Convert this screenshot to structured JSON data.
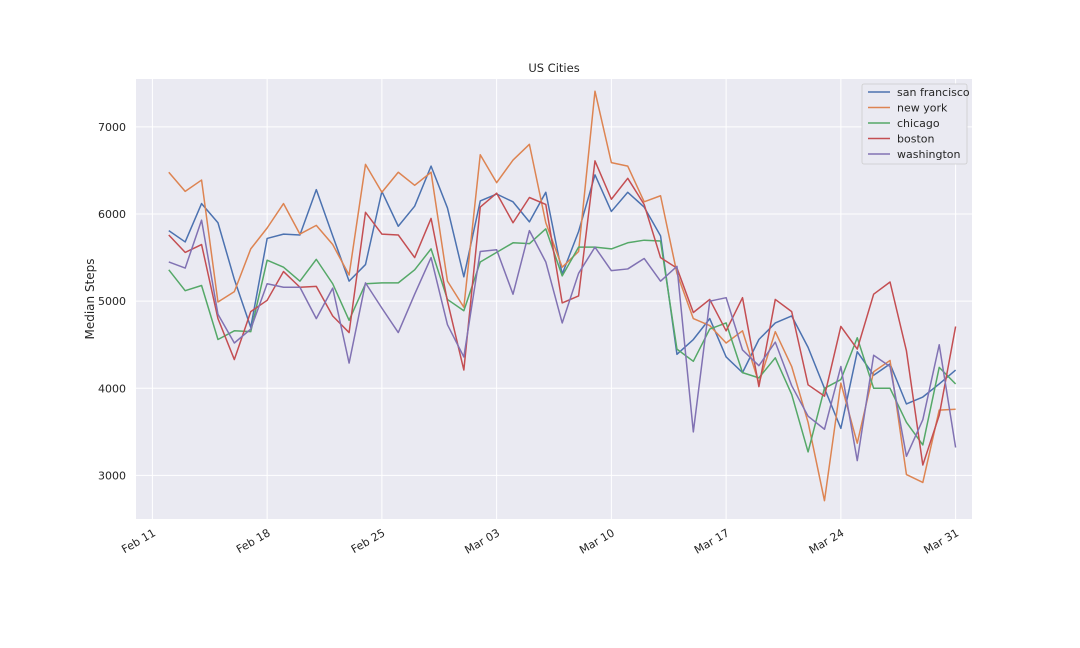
{
  "chart_data": {
    "type": "line",
    "title": "US Cities",
    "xlabel": "",
    "ylabel": "Median Steps",
    "x_start": "2020-02-12",
    "x_end": "2020-03-31",
    "xlim": [
      "2020-02-10",
      "2020-04-01"
    ],
    "ylim": [
      2500,
      7550
    ],
    "y_ticks": [
      3000,
      4000,
      5000,
      6000,
      7000
    ],
    "x_ticks": [
      {
        "date": "2020-02-11",
        "label": "Feb 11"
      },
      {
        "date": "2020-02-18",
        "label": "Feb 18"
      },
      {
        "date": "2020-02-25",
        "label": "Feb 25"
      },
      {
        "date": "2020-03-03",
        "label": "Mar 03"
      },
      {
        "date": "2020-03-10",
        "label": "Mar 10"
      },
      {
        "date": "2020-03-17",
        "label": "Mar 17"
      },
      {
        "date": "2020-03-24",
        "label": "Mar 24"
      },
      {
        "date": "2020-03-31",
        "label": "Mar 31"
      }
    ],
    "grid": true,
    "legend_position": "top-right",
    "series": [
      {
        "name": "san francisco",
        "color": "#4c72b0",
        "values": [
          5810,
          5680,
          6120,
          5900,
          5250,
          4700,
          5720,
          5770,
          5760,
          6280,
          5750,
          5230,
          5420,
          6260,
          5860,
          6090,
          6550,
          6070,
          5280,
          6150,
          6230,
          6140,
          5910,
          6250,
          5310,
          5800,
          6450,
          6030,
          6250,
          6080,
          5750,
          4390,
          4560,
          4800,
          4360,
          4180,
          4560,
          4750,
          4830,
          4470,
          4000,
          3540,
          4420,
          4150,
          4280,
          3820,
          3900,
          4050,
          4210
        ]
      },
      {
        "name": "new york",
        "color": "#dd8452",
        "values": [
          6480,
          6260,
          6390,
          4990,
          5110,
          5600,
          5840,
          6120,
          5770,
          5870,
          5650,
          5300,
          6570,
          6250,
          6480,
          6330,
          6480,
          5230,
          4930,
          6680,
          6360,
          6620,
          6800,
          5900,
          5390,
          5570,
          7410,
          6590,
          6550,
          6140,
          6210,
          5320,
          4800,
          4720,
          4520,
          4660,
          4060,
          4650,
          4250,
          3610,
          2710,
          4060,
          3370,
          4190,
          4320,
          3010,
          2920,
          3750,
          3760
        ]
      },
      {
        "name": "chicago",
        "color": "#55a868",
        "values": [
          5360,
          5120,
          5180,
          4560,
          4660,
          4650,
          5470,
          5390,
          5230,
          5480,
          5200,
          4780,
          5200,
          5210,
          5210,
          5360,
          5600,
          5020,
          4890,
          5450,
          5560,
          5670,
          5660,
          5830,
          5290,
          5620,
          5620,
          5600,
          5670,
          5700,
          5690,
          4450,
          4310,
          4680,
          4750,
          4180,
          4120,
          4350,
          3930,
          3270,
          4000,
          4100,
          4580,
          4000,
          4000,
          3610,
          3350,
          4240,
          4050
        ]
      },
      {
        "name": "boston",
        "color": "#c44e52",
        "values": [
          5760,
          5560,
          5650,
          4800,
          4330,
          4880,
          5010,
          5340,
          5160,
          5170,
          4830,
          4640,
          6020,
          5770,
          5760,
          5500,
          5950,
          5000,
          4210,
          6080,
          6240,
          5900,
          6190,
          6110,
          4980,
          5060,
          6610,
          6170,
          6410,
          6110,
          5500,
          5380,
          4870,
          5020,
          4660,
          5040,
          4020,
          5020,
          4880,
          4040,
          3910,
          4710,
          4450,
          5080,
          5220,
          4430,
          3120,
          3690,
          4710
        ]
      },
      {
        "name": "washington",
        "color": "#8172b3",
        "values": [
          5450,
          5380,
          5930,
          4850,
          4520,
          4680,
          5200,
          5160,
          5160,
          4800,
          5150,
          4290,
          5210,
          4920,
          4640,
          5080,
          5500,
          4730,
          4360,
          5570,
          5590,
          5080,
          5810,
          5450,
          4750,
          5320,
          5620,
          5350,
          5370,
          5490,
          5230,
          5400,
          3500,
          5000,
          5040,
          4440,
          4260,
          4530,
          4030,
          3680,
          3530,
          4250,
          3170,
          4380,
          4250,
          3220,
          3640,
          4500,
          3320
        ]
      }
    ]
  }
}
